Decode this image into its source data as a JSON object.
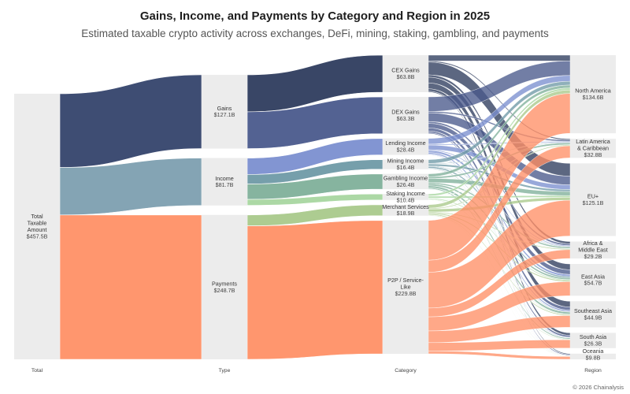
{
  "title": "Gains, Income, and Payments by Category and Region in 2025",
  "subtitle": "Estimated taxable crypto activity across exchanges, DeFi, mining, staking, gambling, and payments",
  "credit": "© 2026 Chainalysis",
  "chart_data": {
    "type": "sankey",
    "columns": [
      "Total",
      "Type",
      "Category",
      "Region"
    ],
    "colors": {
      "CEX Gains": "#2e3c5e",
      "DEX Gains": "#4a5a8c",
      "Lending Income": "#7b8fd0",
      "Mining Income": "#6f9aa6",
      "Gambling Income": "#7fb09a",
      "Staking Income": "#a8d6a0",
      "Merchant Services": "#a9c98b",
      "P2P / Service-Like": "#ff9066"
    },
    "nodes": [
      {
        "id": "total",
        "col": 0,
        "label": [
          "Total",
          "Taxable",
          "Amount"
        ],
        "value_label": "$457.5B",
        "value": 457.5
      },
      {
        "id": "gains",
        "col": 1,
        "label": [
          "Gains"
        ],
        "value_label": "$127.1B",
        "value": 127.1
      },
      {
        "id": "income",
        "col": 1,
        "label": [
          "Income"
        ],
        "value_label": "$81.7B",
        "value": 81.7
      },
      {
        "id": "payments",
        "col": 1,
        "label": [
          "Payments"
        ],
        "value_label": "$248.7B",
        "value": 248.7
      },
      {
        "id": "cex",
        "col": 2,
        "label": [
          "CEX Gains"
        ],
        "value_label": "$63.8B",
        "value": 63.8
      },
      {
        "id": "dex",
        "col": 2,
        "label": [
          "DEX Gains"
        ],
        "value_label": "$63.3B",
        "value": 63.3
      },
      {
        "id": "lending",
        "col": 2,
        "label": [
          "Lending Income"
        ],
        "value_label": "$28.4B",
        "value": 28.4
      },
      {
        "id": "mining",
        "col": 2,
        "label": [
          "Mining Income"
        ],
        "value_label": "$16.4B",
        "value": 16.4
      },
      {
        "id": "gambling",
        "col": 2,
        "label": [
          "Gambling Income"
        ],
        "value_label": "$26.4B",
        "value": 26.4
      },
      {
        "id": "staking",
        "col": 2,
        "label": [
          "Staking Income"
        ],
        "value_label": "$10.4B",
        "value": 10.4
      },
      {
        "id": "merchant",
        "col": 2,
        "label": [
          "Merchant Services"
        ],
        "value_label": "$18.9B",
        "value": 18.9
      },
      {
        "id": "p2p",
        "col": 2,
        "label": [
          "P2P / Service-",
          "Like"
        ],
        "value_label": "$229.8B",
        "value": 229.8
      },
      {
        "id": "na",
        "col": 3,
        "label": [
          "North America"
        ],
        "value_label": "$134.6B",
        "value": 134.6
      },
      {
        "id": "latam",
        "col": 3,
        "label": [
          "Latin America",
          "& Caribbean"
        ],
        "value_label": "$32.8B",
        "value": 32.8
      },
      {
        "id": "eu",
        "col": 3,
        "label": [
          "EU+"
        ],
        "value_label": "$125.1B",
        "value": 125.1
      },
      {
        "id": "africa",
        "col": 3,
        "label": [
          "Africa &",
          "Middle East"
        ],
        "value_label": "$29.2B",
        "value": 29.2
      },
      {
        "id": "eastasia",
        "col": 3,
        "label": [
          "East Asia"
        ],
        "value_label": "$54.7B",
        "value": 54.7
      },
      {
        "id": "seasia",
        "col": 3,
        "label": [
          "Southeast Asia"
        ],
        "value_label": "$44.9B",
        "value": 44.9
      },
      {
        "id": "southasia",
        "col": 3,
        "label": [
          "South Asia"
        ],
        "value_label": "$26.3B",
        "value": 26.3
      },
      {
        "id": "oceania",
        "col": 3,
        "label": [
          "Oceania"
        ],
        "value_label": "$9.8B",
        "value": 9.8
      }
    ],
    "links": [
      {
        "source": "total",
        "target": "gains",
        "value": 127.1
      },
      {
        "source": "total",
        "target": "income",
        "value": 81.7
      },
      {
        "source": "total",
        "target": "payments",
        "value": 248.7
      },
      {
        "source": "gains",
        "target": "cex",
        "value": 63.8
      },
      {
        "source": "gains",
        "target": "dex",
        "value": 63.3
      },
      {
        "source": "income",
        "target": "lending",
        "value": 28.4
      },
      {
        "source": "income",
        "target": "mining",
        "value": 16.4
      },
      {
        "source": "income",
        "target": "gambling",
        "value": 26.4
      },
      {
        "source": "income",
        "target": "staking",
        "value": 10.4
      },
      {
        "source": "payments",
        "target": "merchant",
        "value": 18.9
      },
      {
        "source": "payments",
        "target": "p2p",
        "value": 229.8
      },
      {
        "source": "cex",
        "target": "na",
        "value": 10.0
      },
      {
        "source": "cex",
        "target": "latam",
        "value": 2.0
      },
      {
        "source": "cex",
        "target": "eu",
        "value": 22.0
      },
      {
        "source": "cex",
        "target": "africa",
        "value": 4.0
      },
      {
        "source": "cex",
        "target": "eastasia",
        "value": 10.0
      },
      {
        "source": "cex",
        "target": "seasia",
        "value": 10.0
      },
      {
        "source": "cex",
        "target": "southasia",
        "value": 4.3
      },
      {
        "source": "cex",
        "target": "oceania",
        "value": 1.5
      },
      {
        "source": "dex",
        "target": "na",
        "value": 25.0
      },
      {
        "source": "dex",
        "target": "latam",
        "value": 2.5
      },
      {
        "source": "dex",
        "target": "eu",
        "value": 15.0
      },
      {
        "source": "dex",
        "target": "africa",
        "value": 3.0
      },
      {
        "source": "dex",
        "target": "eastasia",
        "value": 8.0
      },
      {
        "source": "dex",
        "target": "seasia",
        "value": 5.3
      },
      {
        "source": "dex",
        "target": "southasia",
        "value": 3.0
      },
      {
        "source": "dex",
        "target": "oceania",
        "value": 1.5
      },
      {
        "source": "lending",
        "target": "na",
        "value": 10.0
      },
      {
        "source": "lending",
        "target": "latam",
        "value": 1.5
      },
      {
        "source": "lending",
        "target": "eu",
        "value": 8.0
      },
      {
        "source": "lending",
        "target": "africa",
        "value": 1.5
      },
      {
        "source": "lending",
        "target": "eastasia",
        "value": 3.5
      },
      {
        "source": "lending",
        "target": "seasia",
        "value": 2.4
      },
      {
        "source": "lending",
        "target": "southasia",
        "value": 1.0
      },
      {
        "source": "lending",
        "target": "oceania",
        "value": 0.5
      },
      {
        "source": "mining",
        "target": "na",
        "value": 6.5
      },
      {
        "source": "mining",
        "target": "latam",
        "value": 1.0
      },
      {
        "source": "mining",
        "target": "eu",
        "value": 3.5
      },
      {
        "source": "mining",
        "target": "africa",
        "value": 1.0
      },
      {
        "source": "mining",
        "target": "eastasia",
        "value": 2.5
      },
      {
        "source": "mining",
        "target": "seasia",
        "value": 1.0
      },
      {
        "source": "mining",
        "target": "southasia",
        "value": 0.6
      },
      {
        "source": "mining",
        "target": "oceania",
        "value": 0.3
      },
      {
        "source": "gambling",
        "target": "na",
        "value": 5.0
      },
      {
        "source": "gambling",
        "target": "latam",
        "value": 3.0
      },
      {
        "source": "gambling",
        "target": "eu",
        "value": 7.0
      },
      {
        "source": "gambling",
        "target": "africa",
        "value": 2.5
      },
      {
        "source": "gambling",
        "target": "eastasia",
        "value": 3.0
      },
      {
        "source": "gambling",
        "target": "seasia",
        "value": 3.5
      },
      {
        "source": "gambling",
        "target": "southasia",
        "value": 1.9
      },
      {
        "source": "gambling",
        "target": "oceania",
        "value": 0.5
      },
      {
        "source": "staking",
        "target": "na",
        "value": 3.5
      },
      {
        "source": "staking",
        "target": "latam",
        "value": 0.5
      },
      {
        "source": "staking",
        "target": "eu",
        "value": 3.0
      },
      {
        "source": "staking",
        "target": "africa",
        "value": 0.5
      },
      {
        "source": "staking",
        "target": "eastasia",
        "value": 1.5
      },
      {
        "source": "staking",
        "target": "seasia",
        "value": 0.9
      },
      {
        "source": "staking",
        "target": "southasia",
        "value": 0.3
      },
      {
        "source": "staking",
        "target": "oceania",
        "value": 0.2
      },
      {
        "source": "merchant",
        "target": "na",
        "value": 6.0
      },
      {
        "source": "merchant",
        "target": "latam",
        "value": 1.5
      },
      {
        "source": "merchant",
        "target": "eu",
        "value": 5.0
      },
      {
        "source": "merchant",
        "target": "africa",
        "value": 1.5
      },
      {
        "source": "merchant",
        "target": "eastasia",
        "value": 2.0
      },
      {
        "source": "merchant",
        "target": "seasia",
        "value": 1.6
      },
      {
        "source": "merchant",
        "target": "southasia",
        "value": 0.9
      },
      {
        "source": "merchant",
        "target": "oceania",
        "value": 0.4
      },
      {
        "source": "p2p",
        "target": "na",
        "value": 68.6
      },
      {
        "source": "p2p",
        "target": "latam",
        "value": 20.8
      },
      {
        "source": "p2p",
        "target": "eu",
        "value": 61.6
      },
      {
        "source": "p2p",
        "target": "africa",
        "value": 15.2
      },
      {
        "source": "p2p",
        "target": "eastasia",
        "value": 24.2
      },
      {
        "source": "p2p",
        "target": "seasia",
        "value": 20.2
      },
      {
        "source": "p2p",
        "target": "southasia",
        "value": 14.3
      },
      {
        "source": "p2p",
        "target": "oceania",
        "value": 4.9
      }
    ]
  }
}
